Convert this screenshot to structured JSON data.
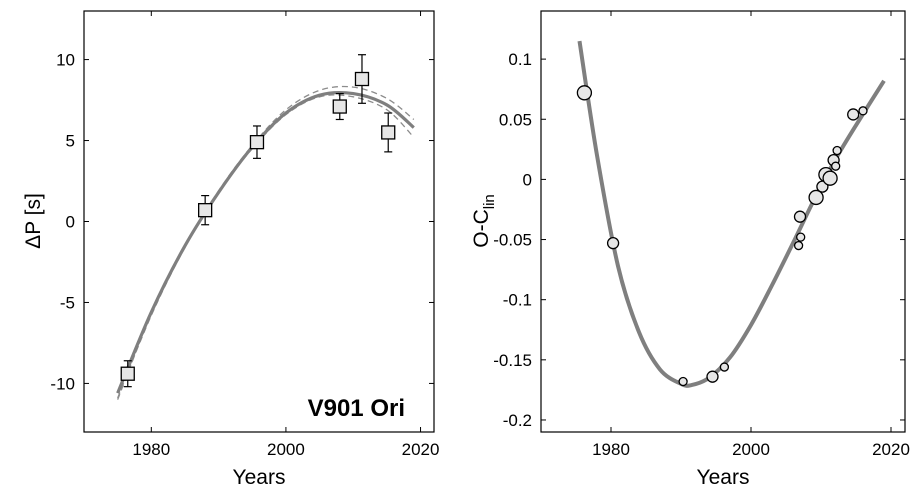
{
  "chart_data": [
    {
      "type": "scatter",
      "xlabel": "Years",
      "ylabel": "ΔP [s]",
      "xlim": [
        1970,
        2022
      ],
      "ylim": [
        -13,
        13
      ],
      "xticks": [
        1980,
        2000,
        2020
      ],
      "yticks": [
        -10,
        -5,
        0,
        5,
        10
      ],
      "annotation": "V901 Ori",
      "grid": false,
      "points": [
        {
          "x": 1976.5,
          "y": -9.4,
          "err": 0.8
        },
        {
          "x": 1988.0,
          "y": 0.7,
          "err": 0.9
        },
        {
          "x": 1995.7,
          "y": 4.9,
          "err": 1.0
        },
        {
          "x": 2008.0,
          "y": 7.1,
          "err": 0.8
        },
        {
          "x": 2011.3,
          "y": 8.8,
          "err": 1.5
        },
        {
          "x": 2015.2,
          "y": 5.5,
          "err": 1.2
        }
      ],
      "fit": {
        "x": [
          1975,
          1980,
          1985,
          1990,
          1995,
          2000,
          2005,
          2010,
          2015,
          2019
        ],
        "y": [
          -10.6,
          -5.6,
          -1.5,
          1.8,
          4.6,
          6.7,
          7.8,
          7.9,
          7.2,
          5.8
        ]
      },
      "fit_alt_upper": {
        "x": [
          1975,
          1980,
          1985,
          1990,
          1995,
          2000,
          2005,
          2010,
          2015,
          2019
        ],
        "y": [
          -11.0,
          -5.7,
          -1.5,
          1.9,
          4.7,
          6.9,
          8.1,
          8.3,
          7.6,
          6.3
        ]
      },
      "fit_alt_lower": {
        "x": [
          1975,
          1980,
          1985,
          1990,
          1995,
          2000,
          2005,
          2010,
          2015,
          2019
        ],
        "y": [
          -10.9,
          -5.8,
          -1.6,
          1.8,
          4.5,
          6.6,
          7.7,
          7.7,
          6.9,
          5.2
        ]
      }
    },
    {
      "type": "scatter",
      "xlabel": "Years",
      "ylabel": "O-C",
      "ylabel_subscript": "lin",
      "xlim": [
        1970,
        2022
      ],
      "ylim": [
        -0.21,
        0.14
      ],
      "xticks": [
        1980,
        2000,
        2020
      ],
      "yticks": [
        0.1,
        0.05,
        0,
        -0.05,
        -0.1,
        -0.15,
        -0.2
      ],
      "ytick_labels": [
        "0.1",
        "0.05",
        "0",
        "-0.05",
        "-0.1",
        "-0.15",
        "-0.2"
      ],
      "grid": false,
      "points": [
        {
          "x": 1976.2,
          "y": 0.072,
          "size": "large"
        },
        {
          "x": 1980.3,
          "y": -0.053,
          "size": "medium"
        },
        {
          "x": 1990.3,
          "y": -0.168,
          "size": "small"
        },
        {
          "x": 1994.5,
          "y": -0.164,
          "size": "medium"
        },
        {
          "x": 1996.2,
          "y": -0.156,
          "size": "small"
        },
        {
          "x": 2006.8,
          "y": -0.055,
          "size": "small"
        },
        {
          "x": 2007.1,
          "y": -0.048,
          "size": "small"
        },
        {
          "x": 2007.0,
          "y": -0.031,
          "size": "medium"
        },
        {
          "x": 2009.3,
          "y": -0.015,
          "size": "large"
        },
        {
          "x": 2010.2,
          "y": -0.006,
          "size": "medium"
        },
        {
          "x": 2010.7,
          "y": 0.004,
          "size": "large"
        },
        {
          "x": 2011.3,
          "y": 0.001,
          "size": "large"
        },
        {
          "x": 2011.8,
          "y": 0.016,
          "size": "medium"
        },
        {
          "x": 2012.1,
          "y": 0.011,
          "size": "small"
        },
        {
          "x": 2012.3,
          "y": 0.024,
          "size": "small"
        },
        {
          "x": 2014.6,
          "y": 0.054,
          "size": "medium"
        },
        {
          "x": 2016.0,
          "y": 0.057,
          "size": "small"
        }
      ],
      "fit": {
        "x": [
          1975.5,
          1978,
          1981,
          1984,
          1987,
          1990,
          1991.5,
          1994,
          1997,
          2000,
          2003,
          2006,
          2009,
          2012,
          2015,
          2019
        ],
        "y": [
          0.115,
          0.02,
          -0.072,
          -0.127,
          -0.158,
          -0.17,
          -0.171,
          -0.165,
          -0.148,
          -0.121,
          -0.088,
          -0.053,
          -0.017,
          0.016,
          0.045,
          0.082
        ]
      }
    }
  ]
}
